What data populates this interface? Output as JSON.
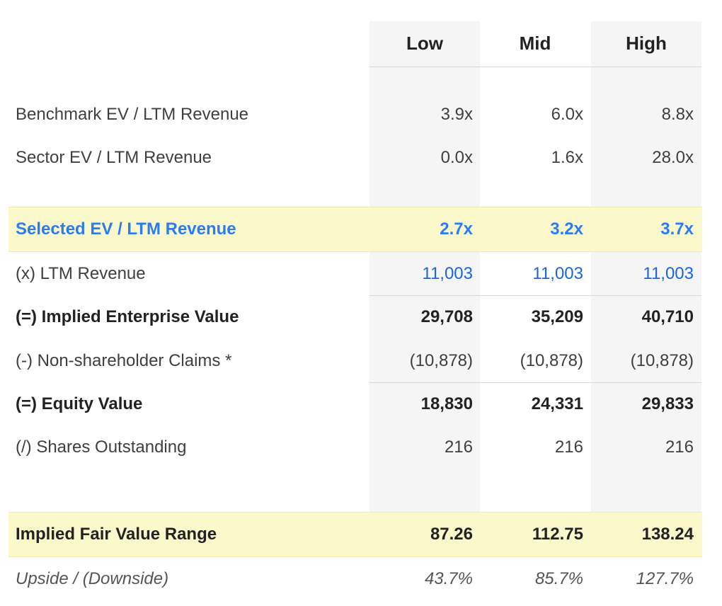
{
  "columns": [
    "Low",
    "Mid",
    "High"
  ],
  "rows": [
    {
      "label": "Benchmark EV / LTM Revenue",
      "values": [
        "3.9x",
        "6.0x",
        "8.8x"
      ]
    },
    {
      "label": "Sector EV / LTM Revenue",
      "values": [
        "0.0x",
        "1.6x",
        "28.0x"
      ]
    },
    {
      "label": "Selected EV / LTM Revenue",
      "values": [
        "2.7x",
        "3.2x",
        "3.7x"
      ]
    },
    {
      "label": "(x) LTM Revenue",
      "values": [
        "11,003",
        "11,003",
        "11,003"
      ]
    },
    {
      "label": "(=) Implied Enterprise Value",
      "values": [
        "29,708",
        "35,209",
        "40,710"
      ]
    },
    {
      "label": "(-) Non-shareholder Claims *",
      "values": [
        "(10,878)",
        "(10,878)",
        "(10,878)"
      ]
    },
    {
      "label": "(=) Equity Value",
      "values": [
        "18,830",
        "24,331",
        "29,833"
      ]
    },
    {
      "label": "(/) Shares Outstanding",
      "values": [
        "216",
        "216",
        "216"
      ]
    },
    {
      "label": "Implied Fair Value Range",
      "values": [
        "87.26",
        "112.75",
        "138.24"
      ]
    },
    {
      "label": "Upside / (Downside)",
      "values": [
        "43.7%",
        "85.7%",
        "127.7%"
      ]
    }
  ],
  "colors": {
    "highlight_background": "#fbf9cc",
    "selected_text": "#2a7cf0",
    "link_blue": "#1b66d6",
    "column_shade": "#f5f5f5"
  }
}
